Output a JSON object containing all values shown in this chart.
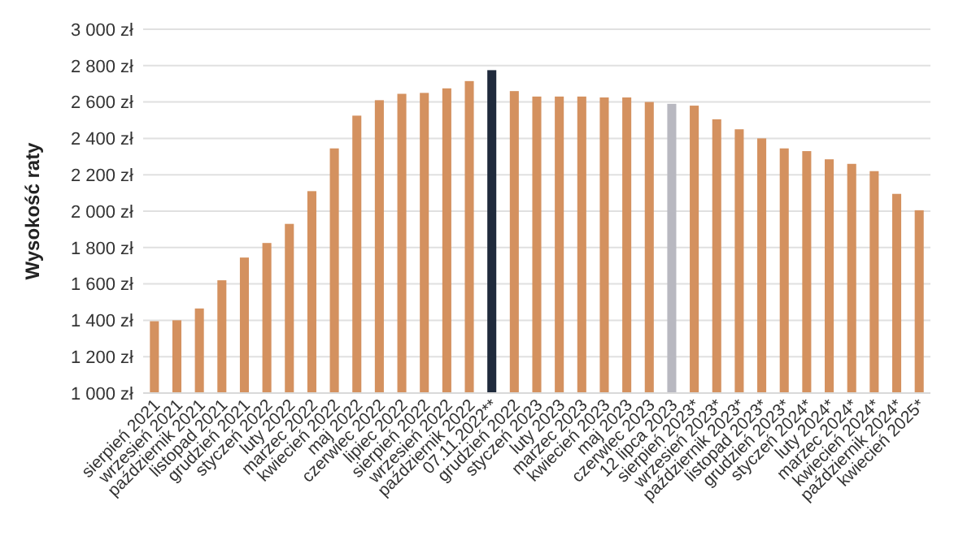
{
  "chart_data": {
    "type": "bar",
    "ylabel": "Wysokość raty",
    "categories": [
      "sierpień 2021",
      "wrzesień 2021",
      "październik 2021",
      "listopad 2021",
      "grudzień 2021",
      "styczeń 2022",
      "luty 2022",
      "marzec 2022",
      "kwiecień 2022",
      "maj 2022",
      "czerwiec 2022",
      "lipiec 2022",
      "sierpień 2022",
      "wrzesień 2022",
      "październik 2022",
      "07.11.2022**",
      "grudzień 2022",
      "styczeń 2023",
      "luty 2023",
      "marzec 2023",
      "kwiecień 2023",
      "maj 2023",
      "czerwiec 2023",
      "12 lipca 2023",
      "sierpień 2023*",
      "wrzesień 2023*",
      "październik 2023*",
      "listopad 2023*",
      "grudzień 2023*",
      "styczeń 2024*",
      "luty 2024*",
      "marzec 2024*",
      "kwiecień 2024*",
      "październik 2024*",
      "kwiecień 2025*"
    ],
    "values": [
      1395,
      1400,
      1465,
      1620,
      1745,
      1825,
      1930,
      2110,
      2345,
      2525,
      2610,
      2645,
      2650,
      2675,
      2715,
      2775,
      2660,
      2630,
      2630,
      2630,
      2625,
      2625,
      2600,
      2590,
      2580,
      2505,
      2450,
      2400,
      2345,
      2330,
      2285,
      2260,
      2220,
      2095,
      2005
    ],
    "colors": [
      "#d4915f",
      "#d4915f",
      "#d4915f",
      "#d4915f",
      "#d4915f",
      "#d4915f",
      "#d4915f",
      "#d4915f",
      "#d4915f",
      "#d4915f",
      "#d4915f",
      "#d4915f",
      "#d4915f",
      "#d4915f",
      "#d4915f",
      "#1f2a3c",
      "#d4915f",
      "#d4915f",
      "#d4915f",
      "#d4915f",
      "#d4915f",
      "#d4915f",
      "#d4915f",
      "#b8b8c0",
      "#d4915f",
      "#d4915f",
      "#d4915f",
      "#d4915f",
      "#d4915f",
      "#d4915f",
      "#d4915f",
      "#d4915f",
      "#d4915f",
      "#d4915f",
      "#d4915f"
    ],
    "ylim": [
      1000,
      3000
    ],
    "yticks": [
      {
        "value": 1000,
        "label": "1 000 zł"
      },
      {
        "value": 1200,
        "label": "1 200 zł"
      },
      {
        "value": 1400,
        "label": "1 400 zł"
      },
      {
        "value": 1600,
        "label": "1 600 zł"
      },
      {
        "value": 1800,
        "label": "1 800 zł"
      },
      {
        "value": 2000,
        "label": "2 000 zł"
      },
      {
        "value": 2200,
        "label": "2 200 zł"
      },
      {
        "value": 2400,
        "label": "2 400 zł"
      },
      {
        "value": 2600,
        "label": "2 600 zł"
      },
      {
        "value": 2800,
        "label": "2 800 zł"
      },
      {
        "value": 3000,
        "label": "3 000 zł"
      }
    ],
    "grid": "y"
  }
}
